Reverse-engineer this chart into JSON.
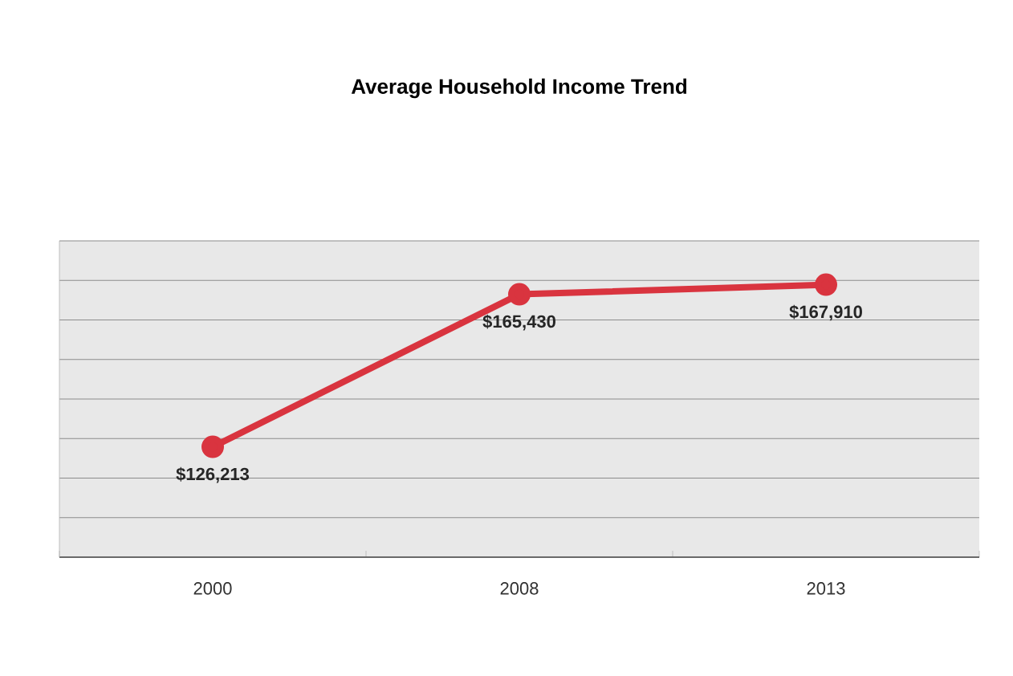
{
  "chart_data": {
    "type": "line",
    "title": "Average Household Income Trend",
    "categories": [
      "2000",
      "2008",
      "2013"
    ],
    "series": [
      {
        "color": "#d9343f",
        "values": [
          126213,
          165430,
          167910
        ],
        "value_labels": [
          "$126,213",
          "$165,430",
          "$167,910"
        ]
      }
    ],
    "grid": "y",
    "marker": "circle",
    "line_style": "solid",
    "tick_labels": "x"
  }
}
